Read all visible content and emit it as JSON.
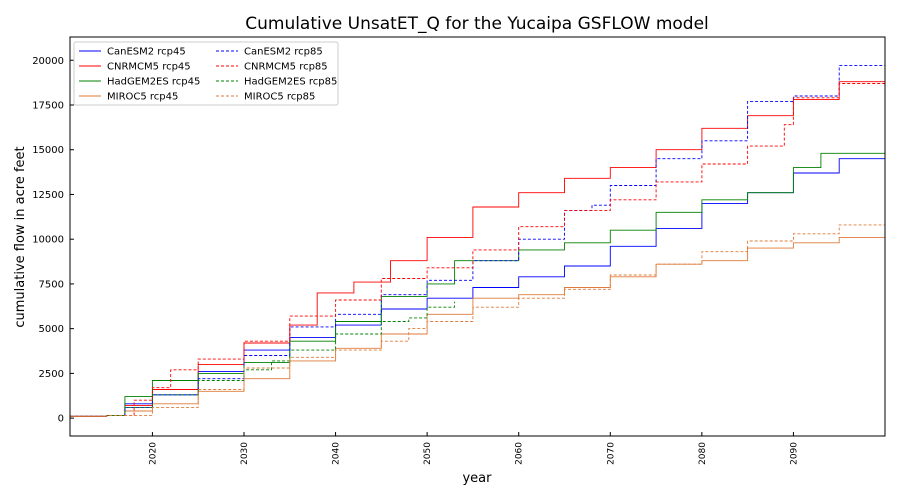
{
  "chart_data": {
    "type": "line",
    "title": "Cumulative UnsatET_Q for the Yucaipa GSFLOW model",
    "xlabel": "year",
    "ylabel": "cumulative flow in acre feet",
    "xlim": [
      2011,
      2100
    ],
    "ylim": [
      -1000,
      21300
    ],
    "x_ticks": [
      "2020",
      "2030",
      "2040",
      "2050",
      "2060",
      "2070",
      "2080",
      "2090"
    ],
    "y_ticks": [
      "0",
      "2500",
      "5000",
      "7500",
      "10000",
      "12500",
      "15000",
      "17500",
      "20000"
    ],
    "legend_position": "upper-left",
    "grid": false,
    "series": [
      {
        "name": "CanESM2 rcp45",
        "color": "#0000ff",
        "dash": "solid",
        "points": [
          [
            2011,
            100
          ],
          [
            2015,
            150
          ],
          [
            2017,
            800
          ],
          [
            2020,
            1300
          ],
          [
            2025,
            2600
          ],
          [
            2030,
            3800
          ],
          [
            2035,
            4500
          ],
          [
            2040,
            5200
          ],
          [
            2045,
            6100
          ],
          [
            2050,
            6700
          ],
          [
            2055,
            7300
          ],
          [
            2060,
            7900
          ],
          [
            2065,
            8500
          ],
          [
            2070,
            9600
          ],
          [
            2075,
            10600
          ],
          [
            2080,
            12000
          ],
          [
            2085,
            12600
          ],
          [
            2090,
            13700
          ],
          [
            2095,
            14500
          ],
          [
            2100,
            15100
          ]
        ]
      },
      {
        "name": "CNRMCM5 rcp45",
        "color": "#ff0000",
        "dash": "solid",
        "points": [
          [
            2011,
            100
          ],
          [
            2015,
            150
          ],
          [
            2017,
            700
          ],
          [
            2020,
            1600
          ],
          [
            2025,
            3000
          ],
          [
            2030,
            4200
          ],
          [
            2035,
            5200
          ],
          [
            2038,
            7000
          ],
          [
            2042,
            7600
          ],
          [
            2046,
            8800
          ],
          [
            2050,
            10100
          ],
          [
            2055,
            11800
          ],
          [
            2060,
            12600
          ],
          [
            2065,
            13400
          ],
          [
            2070,
            14000
          ],
          [
            2075,
            15000
          ],
          [
            2080,
            16200
          ],
          [
            2085,
            16900
          ],
          [
            2090,
            17800
          ],
          [
            2095,
            18800
          ],
          [
            2100,
            19600
          ]
        ]
      },
      {
        "name": "HadGEM2ES rcp45",
        "color": "#008000",
        "dash": "solid",
        "points": [
          [
            2011,
            100
          ],
          [
            2015,
            150
          ],
          [
            2017,
            1200
          ],
          [
            2020,
            2100
          ],
          [
            2025,
            2500
          ],
          [
            2030,
            3100
          ],
          [
            2035,
            4300
          ],
          [
            2040,
            5400
          ],
          [
            2045,
            6800
          ],
          [
            2050,
            7500
          ],
          [
            2053,
            8800
          ],
          [
            2060,
            9400
          ],
          [
            2065,
            9800
          ],
          [
            2070,
            10500
          ],
          [
            2075,
            11500
          ],
          [
            2080,
            12200
          ],
          [
            2085,
            12600
          ],
          [
            2090,
            14000
          ],
          [
            2093,
            14800
          ],
          [
            2100,
            15600
          ]
        ]
      },
      {
        "name": "MIROC5 rcp45",
        "color": "#e07b39",
        "dash": "solid",
        "points": [
          [
            2011,
            100
          ],
          [
            2015,
            150
          ],
          [
            2017,
            400
          ],
          [
            2020,
            800
          ],
          [
            2025,
            1500
          ],
          [
            2030,
            2200
          ],
          [
            2035,
            3200
          ],
          [
            2040,
            3900
          ],
          [
            2045,
            4700
          ],
          [
            2050,
            5800
          ],
          [
            2055,
            6700
          ],
          [
            2060,
            6900
          ],
          [
            2065,
            7300
          ],
          [
            2070,
            7900
          ],
          [
            2075,
            8600
          ],
          [
            2080,
            8800
          ],
          [
            2085,
            9500
          ],
          [
            2090,
            9800
          ],
          [
            2095,
            10100
          ],
          [
            2100,
            11200
          ]
        ]
      },
      {
        "name": "CanESM2 rcp85",
        "color": "#0000ff",
        "dash": "dashed",
        "points": [
          [
            2011,
            100
          ],
          [
            2015,
            150
          ],
          [
            2017,
            600
          ],
          [
            2020,
            1300
          ],
          [
            2025,
            2200
          ],
          [
            2030,
            3500
          ],
          [
            2035,
            5100
          ],
          [
            2040,
            5800
          ],
          [
            2045,
            6900
          ],
          [
            2050,
            7700
          ],
          [
            2055,
            8800
          ],
          [
            2060,
            10000
          ],
          [
            2065,
            11600
          ],
          [
            2068,
            11900
          ],
          [
            2070,
            13000
          ],
          [
            2075,
            14500
          ],
          [
            2080,
            15500
          ],
          [
            2085,
            17700
          ],
          [
            2090,
            18000
          ],
          [
            2095,
            19700
          ],
          [
            2100,
            20400
          ]
        ]
      },
      {
        "name": "CNRMCM5 rcp85",
        "color": "#ff0000",
        "dash": "dashed",
        "points": [
          [
            2011,
            100
          ],
          [
            2015,
            150
          ],
          [
            2018,
            1000
          ],
          [
            2020,
            1700
          ],
          [
            2022,
            2700
          ],
          [
            2025,
            3300
          ],
          [
            2030,
            4300
          ],
          [
            2035,
            5700
          ],
          [
            2040,
            6600
          ],
          [
            2045,
            7800
          ],
          [
            2050,
            8400
          ],
          [
            2055,
            9400
          ],
          [
            2060,
            10700
          ],
          [
            2065,
            11600
          ],
          [
            2070,
            12200
          ],
          [
            2075,
            13200
          ],
          [
            2080,
            14200
          ],
          [
            2085,
            15200
          ],
          [
            2089,
            16400
          ],
          [
            2090,
            17900
          ],
          [
            2095,
            18700
          ],
          [
            2100,
            19600
          ]
        ]
      },
      {
        "name": "HadGEM2ES rcp85",
        "color": "#008000",
        "dash": "dashed",
        "points": [
          [
            2015,
            150
          ],
          [
            2017,
            600
          ],
          [
            2020,
            1300
          ],
          [
            2025,
            2100
          ],
          [
            2030,
            2700
          ],
          [
            2033,
            3200
          ],
          [
            2035,
            3800
          ],
          [
            2040,
            4700
          ],
          [
            2045,
            5400
          ],
          [
            2048,
            5600
          ],
          [
            2050,
            6200
          ],
          [
            2053,
            6500
          ]
        ]
      },
      {
        "name": "MIROC5 rcp85",
        "color": "#e07b39",
        "dash": "dashed",
        "points": [
          [
            2011,
            100
          ],
          [
            2015,
            150
          ],
          [
            2020,
            600
          ],
          [
            2025,
            1600
          ],
          [
            2030,
            2800
          ],
          [
            2035,
            3400
          ],
          [
            2040,
            3800
          ],
          [
            2045,
            4300
          ],
          [
            2048,
            5000
          ],
          [
            2050,
            5400
          ],
          [
            2055,
            6200
          ],
          [
            2060,
            6700
          ],
          [
            2065,
            7200
          ],
          [
            2070,
            8000
          ],
          [
            2075,
            8600
          ],
          [
            2080,
            9300
          ],
          [
            2085,
            9900
          ],
          [
            2090,
            10300
          ],
          [
            2095,
            10800
          ],
          [
            2100,
            11300
          ]
        ]
      }
    ]
  }
}
